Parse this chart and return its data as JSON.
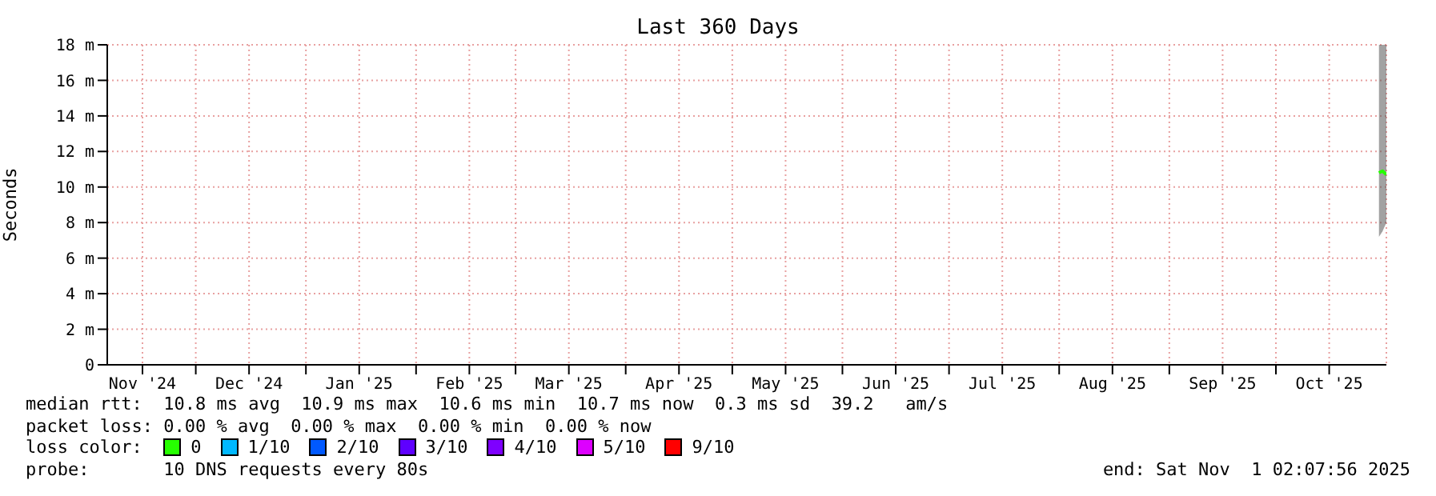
{
  "chart_data": {
    "type": "line",
    "title": "Last 360 Days",
    "ylabel": "Seconds",
    "legend_title": "loss color:",
    "legend": "bottom",
    "grid": true,
    "marker": "none",
    "x": [
      "2025-10-30",
      "2025-10-31",
      "2025-11-01T02:07"
    ],
    "xlim": [
      "2024-11-06T02:07",
      "2025-11-01T02:07"
    ],
    "xticks": [
      {
        "value": "2024-11-16",
        "label": "Nov '24"
      },
      {
        "value": "2024-12-01",
        "label": null
      },
      {
        "value": "2024-12-16",
        "label": "Dec '24"
      },
      {
        "value": "2025-01-01",
        "label": null
      },
      {
        "value": "2025-01-16",
        "label": "Jan '25"
      },
      {
        "value": "2025-02-01",
        "label": null
      },
      {
        "value": "2025-02-16",
        "label": "Feb '25"
      },
      {
        "value": "2025-03-01",
        "label": null
      },
      {
        "value": "2025-03-16",
        "label": "Mar '25"
      },
      {
        "value": "2025-04-01",
        "label": null
      },
      {
        "value": "2025-04-16",
        "label": "Apr '25"
      },
      {
        "value": "2025-05-01",
        "label": null
      },
      {
        "value": "2025-05-16",
        "label": "May '25"
      },
      {
        "value": "2025-06-01",
        "label": null
      },
      {
        "value": "2025-06-16",
        "label": "Jun '25"
      },
      {
        "value": "2025-07-01",
        "label": null
      },
      {
        "value": "2025-07-16",
        "label": "Jul '25"
      },
      {
        "value": "2025-08-01",
        "label": null
      },
      {
        "value": "2025-08-16",
        "label": "Aug '25"
      },
      {
        "value": "2025-09-01",
        "label": null
      },
      {
        "value": "2025-09-16",
        "label": "Sep '25"
      },
      {
        "value": "2025-10-01",
        "label": null
      },
      {
        "value": "2025-10-16",
        "label": "Oct '25"
      }
    ],
    "ylim": [
      0,
      18
    ],
    "yticks": [
      {
        "value": 0,
        "label": "0"
      },
      {
        "value": 2,
        "label": "2 m"
      },
      {
        "value": 4,
        "label": "4 m"
      },
      {
        "value": 6,
        "label": "6 m"
      },
      {
        "value": 8,
        "label": "8 m"
      },
      {
        "value": 10,
        "label": "10 m"
      },
      {
        "value": 12,
        "label": "12 m"
      },
      {
        "value": 14,
        "label": "14 m"
      },
      {
        "value": 16,
        "label": "16 m"
      },
      {
        "value": 18,
        "label": "18 m"
      }
    ],
    "series": [
      {
        "name": "0",
        "color": "#26ff00",
        "values": [
          10.8,
          10.9,
          10.7
        ],
        "lower": [
          7.2,
          7.5,
          8
        ],
        "upper": [
          18,
          18,
          18
        ]
      },
      {
        "name": "1/10",
        "color": "#00b8ff",
        "values": [
          null,
          null,
          null
        ]
      },
      {
        "name": "2/10",
        "color": "#0059ff",
        "values": [
          null,
          null,
          null
        ]
      },
      {
        "name": "3/10",
        "color": "#5e00ff",
        "values": [
          null,
          null,
          null
        ]
      },
      {
        "name": "4/10",
        "color": "#7e00ff",
        "values": [
          null,
          null,
          null
        ]
      },
      {
        "name": "5/10",
        "color": "#dd00ff",
        "values": [
          null,
          null,
          null
        ]
      },
      {
        "name": "9/10",
        "color": "#ff0000",
        "values": [
          null,
          null,
          null
        ]
      }
    ],
    "annotations": [
      "median rtt:  10.8 ms avg  10.9 ms max  10.6 ms min  10.7 ms now  0.3 ms sd  39.2   am/s",
      "packet loss: 0.00 % avg  0.00 % max  0.00 % min  0.00 % now",
      "probe:       10 DNS requests every 80s",
      "end: Sat Nov  1 02:07:56 2025"
    ]
  }
}
